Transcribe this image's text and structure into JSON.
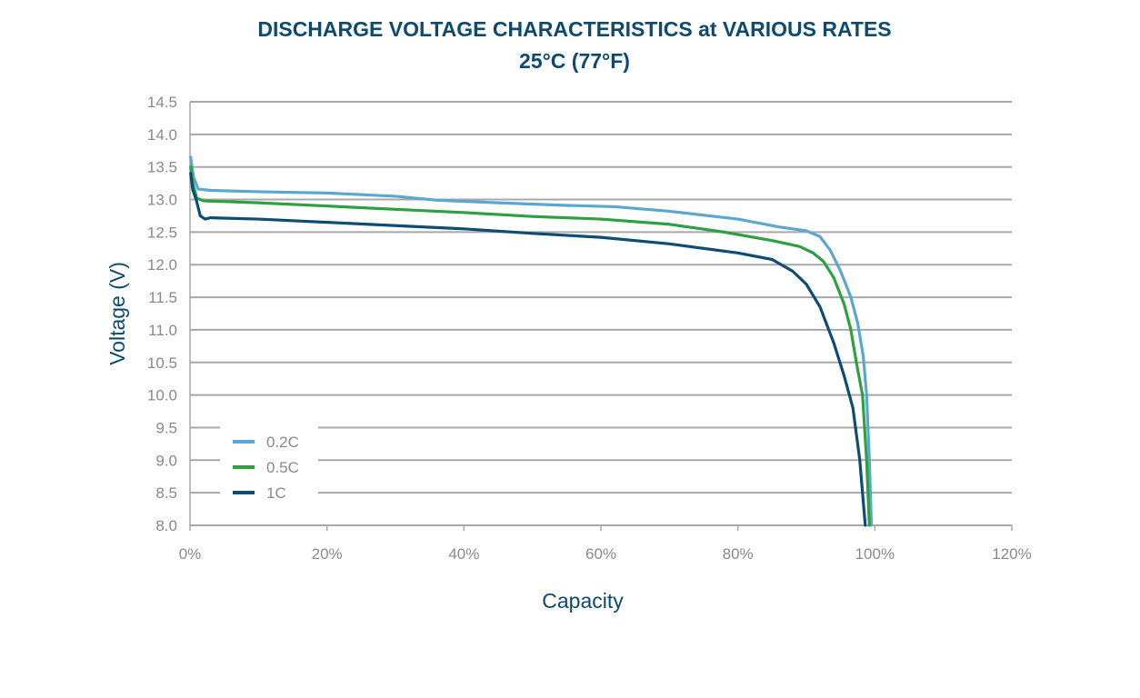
{
  "chart_data": {
    "type": "line",
    "title": "DISCHARGE VOLTAGE CHARACTERISTICS at VARIOUS RATES",
    "subtitle": "25°C (77°F)",
    "xlabel": "Capacity",
    "ylabel": "Voltage (V)",
    "xlim": [
      0,
      120
    ],
    "ylim": [
      8.0,
      14.5
    ],
    "x_ticks": [
      "0%",
      "20%",
      "40%",
      "60%",
      "80%",
      "100%",
      "120%"
    ],
    "y_ticks": [
      "8.0",
      "8.5",
      "9.0",
      "9.5",
      "10.0",
      "10.5",
      "11.0",
      "11.5",
      "12.0",
      "12.5",
      "13.0",
      "13.5",
      "14.0",
      "14.5"
    ],
    "grid": "horizontal",
    "legend_position": "lower-left",
    "series": [
      {
        "name": "0.2C",
        "color": "#5aa7d1",
        "points": [
          [
            0.1,
            13.65
          ],
          [
            0.5,
            13.35
          ],
          [
            1.2,
            13.16
          ],
          [
            3,
            13.14
          ],
          [
            10,
            13.12
          ],
          [
            20,
            13.1
          ],
          [
            30,
            13.05
          ],
          [
            36,
            12.99
          ],
          [
            45,
            12.95
          ],
          [
            55,
            12.91
          ],
          [
            62,
            12.89
          ],
          [
            70,
            12.82
          ],
          [
            80,
            12.7
          ],
          [
            86,
            12.58
          ],
          [
            90,
            12.52
          ],
          [
            92,
            12.43
          ],
          [
            93.5,
            12.22
          ],
          [
            95,
            11.9
          ],
          [
            96.5,
            11.5
          ],
          [
            97.5,
            11.1
          ],
          [
            98.3,
            10.6
          ],
          [
            98.8,
            10.0
          ],
          [
            99.2,
            9.0
          ],
          [
            99.5,
            8.0
          ]
        ]
      },
      {
        "name": "0.5C",
        "color": "#2ea043",
        "points": [
          [
            0.1,
            13.5
          ],
          [
            0.4,
            13.25
          ],
          [
            1,
            13.02
          ],
          [
            2,
            12.98
          ],
          [
            10,
            12.95
          ],
          [
            20,
            12.9
          ],
          [
            30,
            12.85
          ],
          [
            40,
            12.8
          ],
          [
            50,
            12.74
          ],
          [
            60,
            12.7
          ],
          [
            70,
            12.62
          ],
          [
            78,
            12.5
          ],
          [
            85,
            12.37
          ],
          [
            89,
            12.28
          ],
          [
            91,
            12.18
          ],
          [
            92.5,
            12.05
          ],
          [
            94,
            11.8
          ],
          [
            95.5,
            11.4
          ],
          [
            96.5,
            11.0
          ],
          [
            97.3,
            10.5
          ],
          [
            98.2,
            10.0
          ],
          [
            98.8,
            9.0
          ],
          [
            99.2,
            8.0
          ]
        ]
      },
      {
        "name": "1C",
        "color": "#0d4d74",
        "points": [
          [
            0.1,
            13.4
          ],
          [
            0.4,
            13.15
          ],
          [
            0.9,
            13.0
          ],
          [
            1.5,
            12.75
          ],
          [
            2.2,
            12.7
          ],
          [
            3,
            12.72
          ],
          [
            10,
            12.7
          ],
          [
            20,
            12.65
          ],
          [
            30,
            12.6
          ],
          [
            40,
            12.55
          ],
          [
            50,
            12.48
          ],
          [
            60,
            12.42
          ],
          [
            70,
            12.32
          ],
          [
            80,
            12.18
          ],
          [
            85,
            12.08
          ],
          [
            88,
            11.9
          ],
          [
            90,
            11.7
          ],
          [
            92,
            11.35
          ],
          [
            94,
            10.8
          ],
          [
            95.5,
            10.3
          ],
          [
            96.8,
            9.8
          ],
          [
            97.8,
            9.0
          ],
          [
            98.6,
            8.0
          ]
        ]
      }
    ]
  }
}
